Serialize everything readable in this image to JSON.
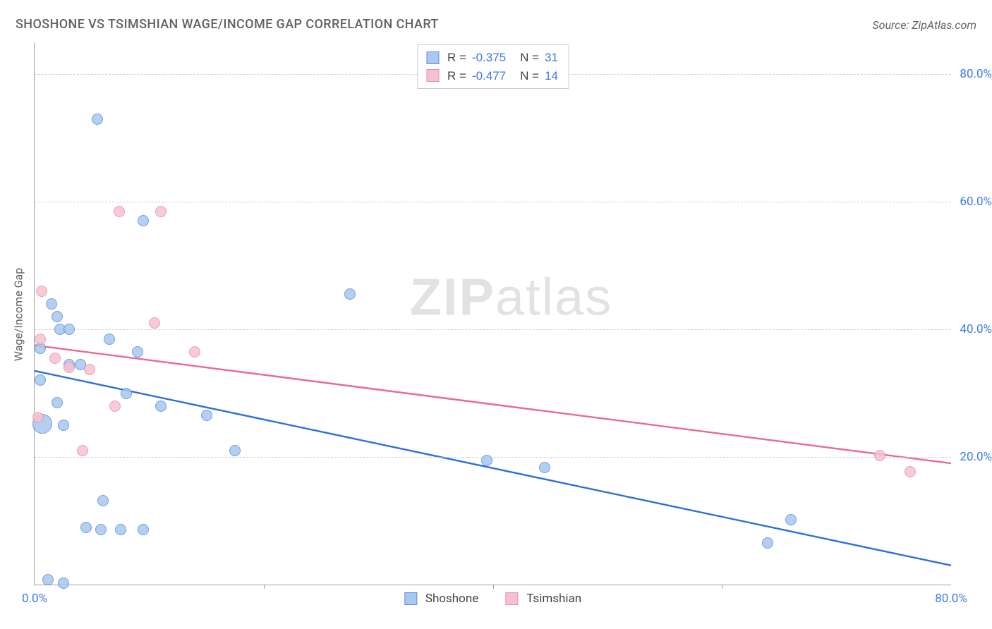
{
  "chart": {
    "type": "scatter",
    "title": "SHOSHONE VS TSIMSHIAN WAGE/INCOME GAP CORRELATION CHART",
    "source_label": "Source: ZipAtlas.com",
    "y_axis_label": "Wage/Income Gap",
    "watermark_bold": "ZIP",
    "watermark_rest": "atlas",
    "watermark_left_pct": 52,
    "watermark_top_pct": 47,
    "background_color": "#ffffff",
    "axis_color": "#9e9e9e",
    "grid_color": "#d0d0d0",
    "tick_label_color": "#3b78e7",
    "title_color": "#5f6368",
    "title_fontsize": 18,
    "tick_fontsize": 17,
    "xlim": [
      0,
      80
    ],
    "ylim": [
      0,
      85
    ],
    "y_gridlines": [
      20,
      40,
      60,
      80
    ],
    "y_tick_labels": [
      "20.0%",
      "40.0%",
      "60.0%",
      "80.0%"
    ],
    "x_ticks": [
      0,
      20,
      40,
      60,
      80
    ],
    "x_tick_labels": [
      "0.0%",
      "",
      "",
      "",
      "80.0%"
    ],
    "series": [
      {
        "name": "Shoshone",
        "fill": "#a9c7f0",
        "stroke": "#5a8fd6",
        "line_color": "#2e6fd8",
        "line_width": 2.4,
        "R": "-0.375",
        "N": "31",
        "trend": {
          "x1": 0,
          "y1": 33.5,
          "x2": 80,
          "y2": 3
        },
        "points": [
          {
            "x": 5.5,
            "y": 73,
            "r": 8
          },
          {
            "x": 9.5,
            "y": 57,
            "r": 8
          },
          {
            "x": 1.5,
            "y": 44,
            "r": 8
          },
          {
            "x": 2.0,
            "y": 42,
            "r": 8
          },
          {
            "x": 2.2,
            "y": 40,
            "r": 8
          },
          {
            "x": 3.0,
            "y": 40,
            "r": 8
          },
          {
            "x": 6.5,
            "y": 38.5,
            "r": 8
          },
          {
            "x": 0.5,
            "y": 37,
            "r": 8
          },
          {
            "x": 9.0,
            "y": 36.5,
            "r": 8
          },
          {
            "x": 3.0,
            "y": 34.5,
            "r": 8
          },
          {
            "x": 4.0,
            "y": 34.5,
            "r": 8
          },
          {
            "x": 27.5,
            "y": 45.5,
            "r": 8
          },
          {
            "x": 0.5,
            "y": 32,
            "r": 8
          },
          {
            "x": 8.0,
            "y": 30,
            "r": 8
          },
          {
            "x": 2.0,
            "y": 28.5,
            "r": 8
          },
          {
            "x": 11.0,
            "y": 28,
            "r": 8
          },
          {
            "x": 15.0,
            "y": 26.5,
            "r": 8
          },
          {
            "x": 2.5,
            "y": 25,
            "r": 8
          },
          {
            "x": 0.7,
            "y": 25.2,
            "r": 14
          },
          {
            "x": 17.5,
            "y": 21,
            "r": 8
          },
          {
            "x": 39.5,
            "y": 19.5,
            "r": 8
          },
          {
            "x": 44.5,
            "y": 18.3,
            "r": 8
          },
          {
            "x": 66.0,
            "y": 10.2,
            "r": 8
          },
          {
            "x": 6.0,
            "y": 13.2,
            "r": 8
          },
          {
            "x": 4.5,
            "y": 9.0,
            "r": 8
          },
          {
            "x": 5.8,
            "y": 8.6,
            "r": 8
          },
          {
            "x": 7.5,
            "y": 8.6,
            "r": 8
          },
          {
            "x": 9.5,
            "y": 8.6,
            "r": 8
          },
          {
            "x": 64.0,
            "y": 6.5,
            "r": 8
          },
          {
            "x": 1.2,
            "y": 0.8,
            "r": 8
          },
          {
            "x": 2.5,
            "y": 0.2,
            "r": 8
          }
        ]
      },
      {
        "name": "Tsimshian",
        "fill": "#f5c1cf",
        "stroke": "#e98fab",
        "line_color": "#e76a94",
        "line_width": 2.4,
        "R": "-0.477",
        "N": "14",
        "trend": {
          "x1": 0,
          "y1": 37.5,
          "x2": 80,
          "y2": 19
        },
        "points": [
          {
            "x": 7.4,
            "y": 58.5,
            "r": 8
          },
          {
            "x": 11.0,
            "y": 58.5,
            "r": 8
          },
          {
            "x": 0.6,
            "y": 46.0,
            "r": 8
          },
          {
            "x": 10.5,
            "y": 41.0,
            "r": 8
          },
          {
            "x": 0.5,
            "y": 38.5,
            "r": 8
          },
          {
            "x": 14.0,
            "y": 36.5,
            "r": 8
          },
          {
            "x": 1.8,
            "y": 35.5,
            "r": 8
          },
          {
            "x": 3.0,
            "y": 34.0,
            "r": 8
          },
          {
            "x": 4.8,
            "y": 33.7,
            "r": 8
          },
          {
            "x": 0.3,
            "y": 26.2,
            "r": 8
          },
          {
            "x": 7.0,
            "y": 28.0,
            "r": 8
          },
          {
            "x": 4.2,
            "y": 21.0,
            "r": 8
          },
          {
            "x": 73.8,
            "y": 20.2,
            "r": 8
          },
          {
            "x": 76.4,
            "y": 17.7,
            "r": 8
          }
        ]
      }
    ],
    "legend_top_layout": "box",
    "legend_bottom_layout": "inline"
  }
}
